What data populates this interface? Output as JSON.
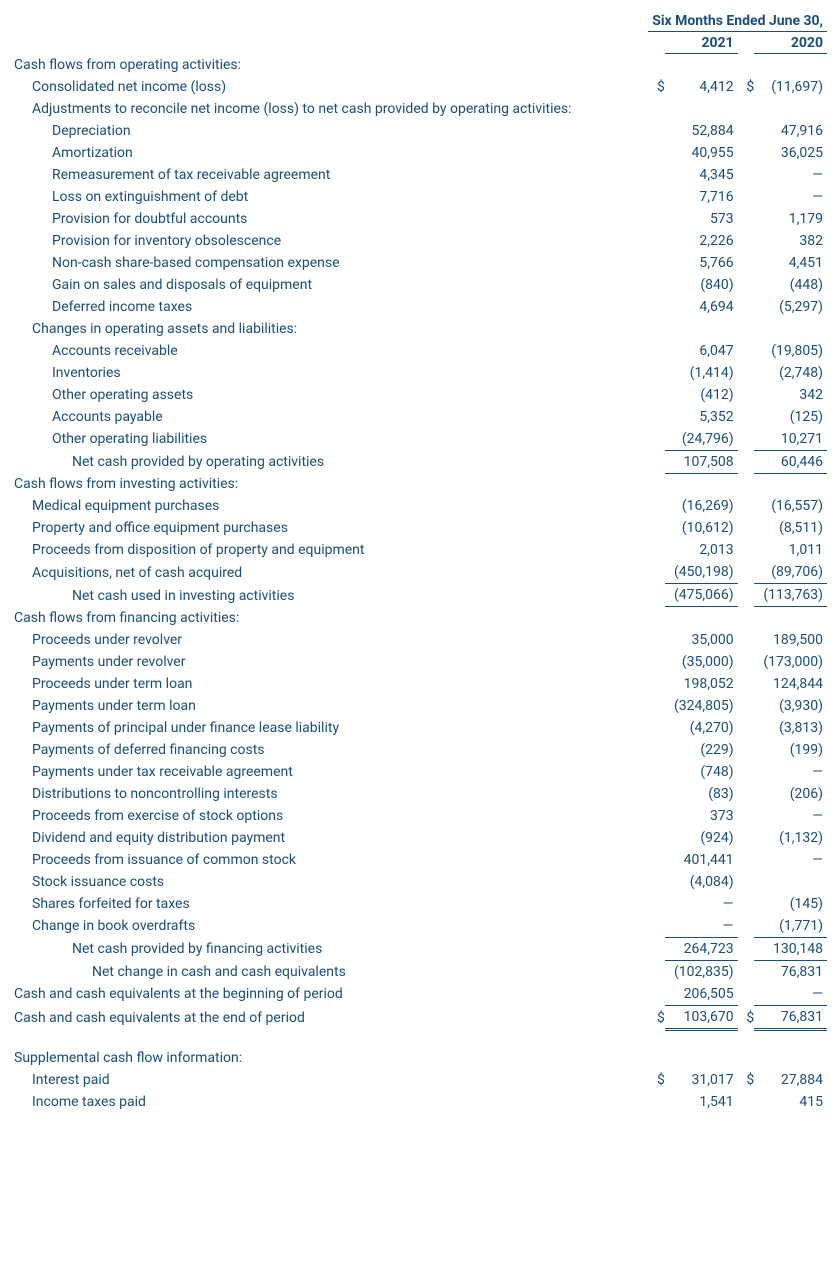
{
  "header": {
    "period_label": "Six Months Ended June 30,",
    "years": [
      "2021",
      "2020"
    ]
  },
  "colors": {
    "text": "#1b4e7a",
    "border": "#1b4e7a",
    "background": "#ffffff"
  },
  "sections": [
    {
      "title": "Cash flows from operating activities:",
      "rows": [
        {
          "label": "Consolidated net income (loss)",
          "indent": 1,
          "y2021": "4,412",
          "y2020": "(11,697)",
          "sym2021": "$",
          "sym2020": "$"
        },
        {
          "label": "Adjustments to reconcile net income (loss) to net cash provided by operating activities:",
          "indent": 1
        },
        {
          "label": "Depreciation",
          "indent": 2,
          "y2021": "52,884",
          "y2020": "47,916"
        },
        {
          "label": "Amortization",
          "indent": 2,
          "y2021": "40,955",
          "y2020": "36,025"
        },
        {
          "label": "Remeasurement of tax receivable agreement",
          "indent": 2,
          "y2021": "4,345",
          "y2020": "—"
        },
        {
          "label": "Loss on extinguishment of debt",
          "indent": 2,
          "y2021": "7,716",
          "y2020": "—"
        },
        {
          "label": "Provision for doubtful accounts",
          "indent": 2,
          "y2021": "573",
          "y2020": "1,179"
        },
        {
          "label": "Provision for inventory obsolescence",
          "indent": 2,
          "y2021": "2,226",
          "y2020": "382"
        },
        {
          "label": "Non-cash share-based compensation expense",
          "indent": 2,
          "y2021": "5,766",
          "y2020": "4,451"
        },
        {
          "label": "Gain on sales and disposals of equipment",
          "indent": 2,
          "y2021": "(840)",
          "y2020": "(448)"
        },
        {
          "label": "Deferred income taxes",
          "indent": 2,
          "y2021": "4,694",
          "y2020": "(5,297)"
        },
        {
          "label": "Changes in operating assets and liabilities:",
          "indent": 1
        },
        {
          "label": "Accounts receivable",
          "indent": 2,
          "y2021": "6,047",
          "y2020": "(19,805)"
        },
        {
          "label": "Inventories",
          "indent": 2,
          "y2021": "(1,414)",
          "y2020": "(2,748)"
        },
        {
          "label": "Other operating assets",
          "indent": 2,
          "y2021": "(412)",
          "y2020": "342"
        },
        {
          "label": "Accounts payable",
          "indent": 2,
          "y2021": "5,352",
          "y2020": "(125)"
        },
        {
          "label": "Other operating liabilities",
          "indent": 2,
          "y2021": "(24,796)",
          "y2020": "10,271",
          "bb": true
        },
        {
          "label": "Net cash provided by operating activities",
          "indent": 3,
          "y2021": "107,508",
          "y2020": "60,446",
          "bb": true
        }
      ]
    },
    {
      "title": "Cash flows from investing activities:",
      "rows": [
        {
          "label": "Medical equipment purchases",
          "indent": 1,
          "y2021": "(16,269)",
          "y2020": "(16,557)"
        },
        {
          "label": "Property and office equipment purchases",
          "indent": 1,
          "y2021": "(10,612)",
          "y2020": "(8,511)"
        },
        {
          "label": "Proceeds from disposition of property and equipment",
          "indent": 1,
          "y2021": "2,013",
          "y2020": "1,011"
        },
        {
          "label": "Acquisitions, net of cash acquired",
          "indent": 1,
          "y2021": "(450,198)",
          "y2020": "(89,706)",
          "bb": true
        },
        {
          "label": "Net cash used in investing activities",
          "indent": 3,
          "y2021": "(475,066)",
          "y2020": "(113,763)",
          "bb": true
        }
      ]
    },
    {
      "title": "Cash flows from financing activities:",
      "rows": [
        {
          "label": "Proceeds under revolver",
          "indent": 1,
          "y2021": "35,000",
          "y2020": "189,500"
        },
        {
          "label": "Payments under revolver",
          "indent": 1,
          "y2021": "(35,000)",
          "y2020": "(173,000)"
        },
        {
          "label": "Proceeds under term loan",
          "indent": 1,
          "y2021": "198,052",
          "y2020": "124,844"
        },
        {
          "label": "Payments under term loan",
          "indent": 1,
          "y2021": "(324,805)",
          "y2020": "(3,930)"
        },
        {
          "label": "Payments of principal under finance lease liability",
          "indent": 1,
          "y2021": "(4,270)",
          "y2020": "(3,813)"
        },
        {
          "label": "Payments of deferred financing costs",
          "indent": 1,
          "y2021": "(229)",
          "y2020": "(199)"
        },
        {
          "label": "Payments under tax receivable agreement",
          "indent": 1,
          "y2021": "(748)",
          "y2020": "—"
        },
        {
          "label": "Distributions to noncontrolling interests",
          "indent": 1,
          "y2021": "(83)",
          "y2020": "(206)"
        },
        {
          "label": "Proceeds from exercise of stock options",
          "indent": 1,
          "y2021": "373",
          "y2020": "—"
        },
        {
          "label": "Dividend and equity distribution payment",
          "indent": 1,
          "y2021": "(924)",
          "y2020": "(1,132)"
        },
        {
          "label": "Proceeds from issuance of common stock",
          "indent": 1,
          "y2021": "401,441",
          "y2020": "—"
        },
        {
          "label": "Stock issuance costs",
          "indent": 1,
          "y2021": "(4,084)",
          "y2020": ""
        },
        {
          "label": "Shares forfeited for taxes",
          "indent": 1,
          "y2021": "—",
          "y2020": "(145)"
        },
        {
          "label": "Change in book overdrafts",
          "indent": 1,
          "y2021": "—",
          "y2020": "(1,771)",
          "bb": true
        },
        {
          "label": "Net cash provided by financing activities",
          "indent": 3,
          "y2021": "264,723",
          "y2020": "130,148",
          "bb": true
        },
        {
          "label": "Net change in cash and cash equivalents",
          "indent": 4,
          "y2021": "(102,835)",
          "y2020": "76,831"
        }
      ]
    }
  ],
  "footer_rows": [
    {
      "label": "Cash and cash equivalents at the beginning of period",
      "indent": 0,
      "y2021": "206,505",
      "y2020": "—",
      "bb": true
    },
    {
      "label": "Cash and cash equivalents at the end of period",
      "indent": 0,
      "y2021": "103,670",
      "y2020": "76,831",
      "sym2021": "$",
      "sym2020": "$",
      "dbl": true
    }
  ],
  "supplemental": {
    "title": "Supplemental cash flow information:",
    "rows": [
      {
        "label": "Interest paid",
        "indent": 1,
        "y2021": "31,017",
        "y2020": "27,884",
        "sym2021": "$",
        "sym2020": "$"
      },
      {
        "label": "Income taxes paid",
        "indent": 1,
        "y2021": "1,541",
        "y2020": "415"
      }
    ]
  }
}
